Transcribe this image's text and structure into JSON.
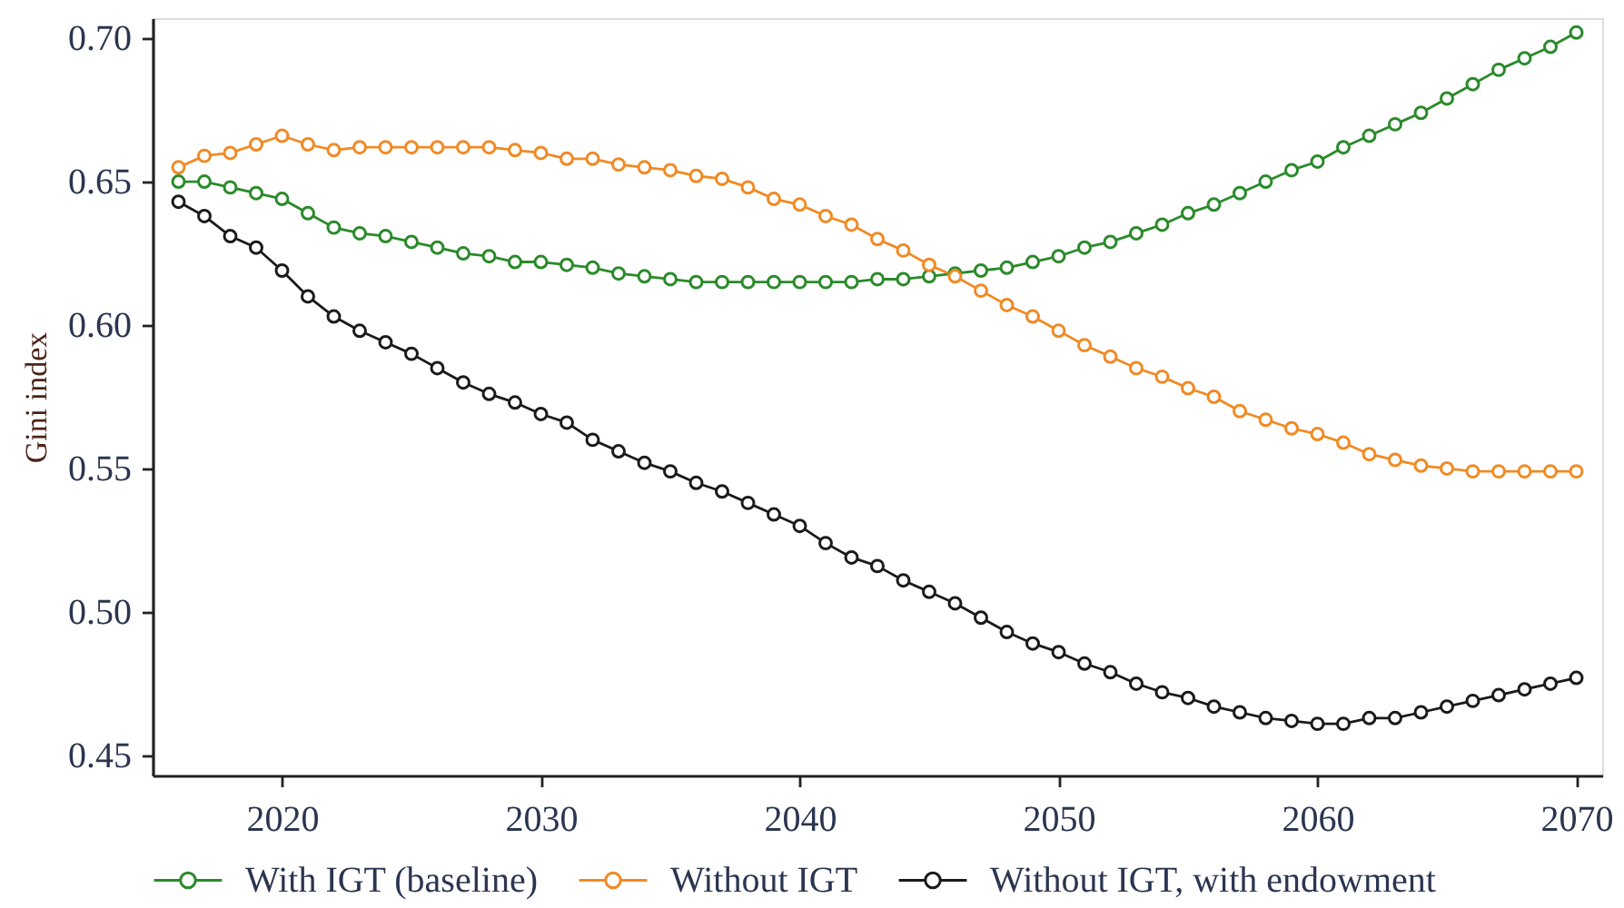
{
  "chart_data": {
    "type": "line",
    "ylabel": "Gini index",
    "x": [
      2016,
      2017,
      2018,
      2019,
      2020,
      2021,
      2022,
      2023,
      2024,
      2025,
      2026,
      2027,
      2028,
      2029,
      2030,
      2031,
      2032,
      2033,
      2034,
      2035,
      2036,
      2037,
      2038,
      2039,
      2040,
      2041,
      2042,
      2043,
      2044,
      2045,
      2046,
      2047,
      2048,
      2049,
      2050,
      2051,
      2052,
      2053,
      2054,
      2055,
      2056,
      2057,
      2058,
      2059,
      2060,
      2061,
      2062,
      2063,
      2064,
      2065,
      2066,
      2067,
      2068,
      2069,
      2070
    ],
    "series": [
      {
        "name": "With IGT (baseline)",
        "color": "#2a8a2a",
        "values": [
          0.65,
          0.65,
          0.648,
          0.646,
          0.644,
          0.639,
          0.634,
          0.632,
          0.631,
          0.629,
          0.627,
          0.625,
          0.624,
          0.622,
          0.622,
          0.621,
          0.62,
          0.618,
          0.617,
          0.616,
          0.615,
          0.615,
          0.615,
          0.615,
          0.615,
          0.615,
          0.615,
          0.616,
          0.616,
          0.617,
          0.618,
          0.619,
          0.62,
          0.622,
          0.624,
          0.627,
          0.629,
          0.632,
          0.635,
          0.639,
          0.642,
          0.646,
          0.65,
          0.654,
          0.657,
          0.662,
          0.666,
          0.67,
          0.674,
          0.679,
          0.684,
          0.689,
          0.693,
          0.697,
          0.702
        ]
      },
      {
        "name": "Without IGT",
        "color": "#f08a24",
        "values": [
          0.655,
          0.659,
          0.66,
          0.663,
          0.666,
          0.663,
          0.661,
          0.662,
          0.662,
          0.662,
          0.662,
          0.662,
          0.662,
          0.661,
          0.66,
          0.658,
          0.658,
          0.656,
          0.655,
          0.654,
          0.652,
          0.651,
          0.648,
          0.644,
          0.642,
          0.638,
          0.635,
          0.63,
          0.626,
          0.621,
          0.617,
          0.612,
          0.607,
          0.603,
          0.598,
          0.593,
          0.589,
          0.585,
          0.582,
          0.578,
          0.575,
          0.57,
          0.567,
          0.564,
          0.562,
          0.559,
          0.555,
          0.553,
          0.551,
          0.55,
          0.549,
          0.549,
          0.549,
          0.549,
          0.549
        ]
      },
      {
        "name": "Without IGT, with endowment",
        "color": "#1a1a1a",
        "values": [
          0.643,
          0.638,
          0.631,
          0.627,
          0.619,
          0.61,
          0.603,
          0.598,
          0.594,
          0.59,
          0.585,
          0.58,
          0.576,
          0.573,
          0.569,
          0.566,
          0.56,
          0.556,
          0.552,
          0.549,
          0.545,
          0.542,
          0.538,
          0.534,
          0.53,
          0.524,
          0.519,
          0.516,
          0.511,
          0.507,
          0.503,
          0.498,
          0.493,
          0.489,
          0.486,
          0.482,
          0.479,
          0.475,
          0.472,
          0.47,
          0.467,
          0.465,
          0.463,
          0.462,
          0.461,
          0.461,
          0.463,
          0.463,
          0.465,
          0.467,
          0.469,
          0.471,
          0.473,
          0.475,
          0.477
        ]
      }
    ],
    "xlim": [
      2015,
      2071
    ],
    "xticks": [
      2020,
      2030,
      2040,
      2050,
      2060,
      2070
    ],
    "ylim": [
      0.443,
      0.707
    ],
    "yticks": [
      0.45,
      {
        "value": 0.5,
        "label": "0.50"
      },
      0.55,
      {
        "value": 0.6,
        "label": "0.60"
      },
      0.65,
      {
        "value": 0.7,
        "label": "0.70"
      }
    ],
    "grid": false,
    "legend": "bottom",
    "marker": "circle",
    "line_style": "solid"
  }
}
